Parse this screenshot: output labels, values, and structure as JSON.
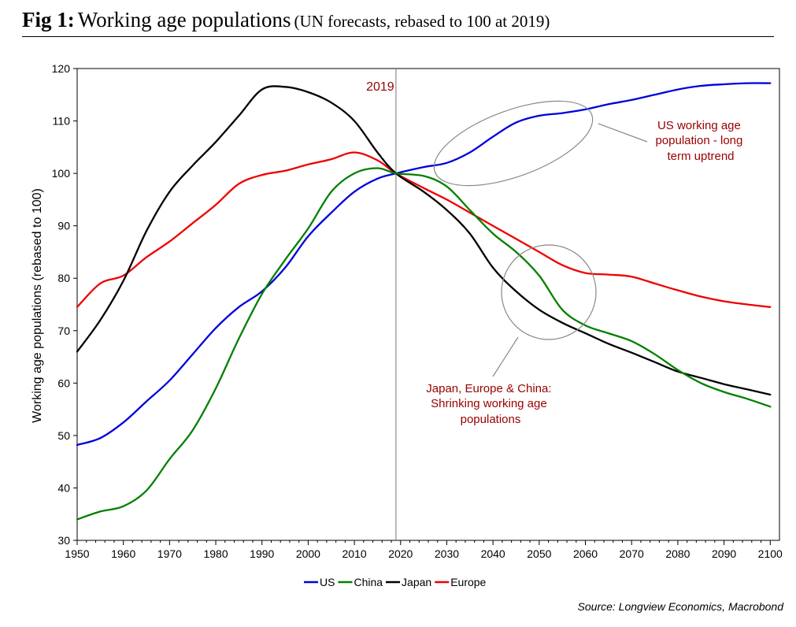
{
  "header": {
    "fig_label": "Fig 1:",
    "title": "Working age populations",
    "subtitle": "(UN forecasts, rebased to 100 at 2019)"
  },
  "source": "Source: Longview Economics, Macrobond",
  "chart_data": {
    "type": "line",
    "ylabel": "Working age populations (rebased to 100)",
    "xlabel": "",
    "xlim": [
      1950,
      2102
    ],
    "ylim": [
      30,
      120
    ],
    "xticks": [
      1950,
      1960,
      1970,
      1980,
      1990,
      2000,
      2010,
      2020,
      2030,
      2040,
      2050,
      2060,
      2070,
      2080,
      2090,
      2100
    ],
    "yticks": [
      30,
      40,
      50,
      60,
      70,
      80,
      90,
      100,
      110,
      120
    ],
    "vline": {
      "x": 2019,
      "label": "2019"
    },
    "legend": [
      "US",
      "China",
      "Japan",
      "Europe"
    ],
    "series": [
      {
        "name": "US",
        "color": "#0000dd",
        "x": [
          1950,
          1955,
          1960,
          1965,
          1970,
          1975,
          1980,
          1985,
          1990,
          1995,
          2000,
          2005,
          2010,
          2015,
          2019,
          2025,
          2030,
          2035,
          2040,
          2045,
          2050,
          2055,
          2060,
          2065,
          2070,
          2075,
          2080,
          2085,
          2090,
          2095,
          2100
        ],
        "y": [
          48.2,
          49.5,
          52.5,
          56.5,
          60.5,
          65.5,
          70.5,
          74.5,
          77.5,
          82,
          88,
          92.5,
          96.5,
          99,
          100,
          101.2,
          102,
          104,
          107,
          109.7,
          111,
          111.5,
          112.2,
          113.2,
          114,
          115,
          116,
          116.7,
          117,
          117.2,
          117.2
        ]
      },
      {
        "name": "China",
        "color": "#008000",
        "x": [
          1950,
          1955,
          1960,
          1965,
          1970,
          1975,
          1980,
          1985,
          1990,
          1995,
          2000,
          2005,
          2010,
          2015,
          2019,
          2025,
          2030,
          2035,
          2040,
          2045,
          2050,
          2055,
          2060,
          2065,
          2070,
          2075,
          2080,
          2085,
          2090,
          2095,
          2100
        ],
        "y": [
          34,
          35.5,
          36.5,
          39.5,
          45.5,
          51,
          59,
          68.5,
          77,
          83.5,
          89.5,
          96.5,
          100,
          101,
          100,
          99.5,
          97.5,
          93,
          88.5,
          85,
          80.5,
          74,
          71,
          69.5,
          68,
          65.5,
          62.5,
          60,
          58.3,
          57,
          55.5
        ]
      },
      {
        "name": "Japan",
        "color": "#000000",
        "x": [
          1950,
          1955,
          1960,
          1965,
          1970,
          1975,
          1980,
          1985,
          1990,
          1995,
          2000,
          2005,
          2010,
          2015,
          2019,
          2025,
          2030,
          2035,
          2040,
          2045,
          2050,
          2055,
          2060,
          2065,
          2070,
          2075,
          2080,
          2085,
          2090,
          2095,
          2100
        ],
        "y": [
          66,
          72,
          79.5,
          89,
          96.5,
          101.5,
          106,
          111,
          116,
          116.5,
          115.5,
          113.5,
          110,
          104,
          100,
          96.5,
          93,
          88.5,
          82,
          77.5,
          74,
          71.5,
          69.5,
          67.5,
          65.8,
          64,
          62.2,
          61,
          59.8,
          58.8,
          57.8
        ]
      },
      {
        "name": "Europe",
        "color": "#ee0000",
        "x": [
          1950,
          1955,
          1960,
          1965,
          1970,
          1975,
          1980,
          1985,
          1990,
          1995,
          2000,
          2005,
          2010,
          2015,
          2019,
          2025,
          2030,
          2035,
          2040,
          2045,
          2050,
          2055,
          2060,
          2065,
          2070,
          2075,
          2080,
          2085,
          2090,
          2095,
          2100
        ],
        "y": [
          74.5,
          79,
          80.5,
          84,
          87,
          90.5,
          94,
          98,
          99.7,
          100.5,
          101.7,
          102.7,
          104,
          102.5,
          100,
          97.2,
          95,
          92.5,
          90,
          87.5,
          85,
          82.5,
          81,
          80.7,
          80.3,
          79,
          77.7,
          76.5,
          75.6,
          75,
          74.5
        ]
      }
    ],
    "annotations": [
      {
        "lines": [
          "US working age",
          "population - long",
          "term uptrend"
        ],
        "color": "#990000"
      },
      {
        "lines": [
          "Japan, Europe & China:",
          "Shrinking working age",
          "populations"
        ],
        "color": "#990000"
      }
    ]
  }
}
